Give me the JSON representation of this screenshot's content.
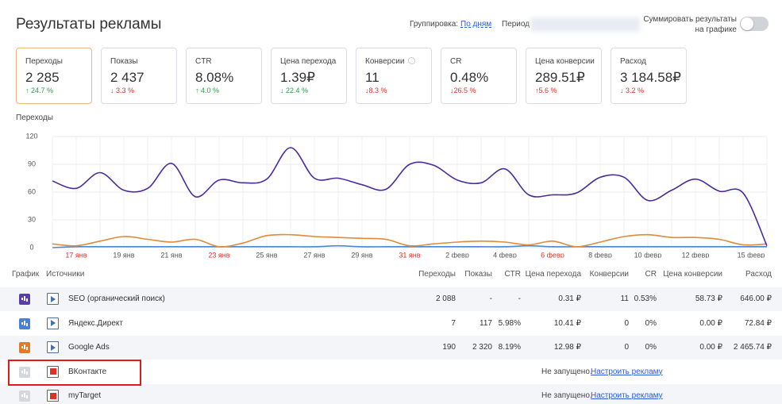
{
  "header": {
    "title": "Результаты рекламы",
    "grouping_label": "Группировка:",
    "grouping_value": "По дням",
    "period_label": "Период",
    "sum_label": [
      "Суммировать результаты",
      "на графике"
    ]
  },
  "cards": [
    {
      "label": "Переходы",
      "value": "2 285",
      "change": "↑ 24.7 %",
      "color": "#2e9d4a",
      "active": true
    },
    {
      "label": "Показы",
      "value": "2 437",
      "change": "↓ 3.3 %",
      "color": "#d9342b"
    },
    {
      "label": "CTR",
      "value": "8.08%",
      "change": "↑ 4.0 %",
      "color": "#2e9d4a"
    },
    {
      "label": "Цена перехода",
      "value": "1.39₽",
      "change": "↓ 22.4 %",
      "color": "#2e9d4a"
    },
    {
      "label": "Конверсии",
      "value": "11",
      "change": "↓8.3 %",
      "color": "#d9342b",
      "settings_icon": true
    },
    {
      "label": "CR",
      "value": "0.48%",
      "change": "↓26.5 %",
      "color": "#d9342b"
    },
    {
      "label": "Цена конверсии",
      "value": "289.51₽",
      "change": "↑5.6 %",
      "color": "#d9342b"
    },
    {
      "label": "Расход",
      "value": "3 184.58₽",
      "change": "↓ 3.2 %",
      "color": "#d9342b"
    }
  ],
  "chart_data": {
    "type": "line",
    "title": "Переходы",
    "categories": [
      null,
      "17 янв",
      null,
      "19 янв",
      null,
      "21 янв",
      null,
      "23 янв",
      null,
      "25 янв",
      null,
      "27 янв",
      null,
      "29 янв",
      null,
      "31 янв",
      null,
      "2 февр",
      null,
      "4 февр",
      null,
      "6 февр",
      null,
      "8 февр",
      null,
      "10 февр",
      null,
      "12 февр",
      null,
      null,
      "15 февр"
    ],
    "category_colors": [
      null,
      "#d9342b",
      null,
      "#555",
      null,
      "#555",
      null,
      "#d9342b",
      null,
      "#555",
      null,
      "#555",
      null,
      "#555",
      null,
      "#d9342b",
      null,
      "#555",
      null,
      "#555",
      null,
      "#d9342b",
      null,
      "#555",
      null,
      "#555",
      null,
      "#555",
      null,
      null,
      "#555"
    ],
    "ylim": [
      0,
      120
    ],
    "yticks": [
      0,
      30,
      60,
      90,
      120
    ],
    "grid": true,
    "series": [
      {
        "color": "#4b2a9e",
        "values": [
          72,
          64,
          81,
          62,
          64,
          91,
          55,
          73,
          70,
          74,
          108,
          75,
          75,
          68,
          63,
          90,
          89,
          73,
          70,
          85,
          57,
          57,
          59,
          76,
          76,
          51,
          62,
          74,
          61,
          59,
          2
        ]
      },
      {
        "color": "#e08a3c",
        "values": [
          4,
          2,
          7,
          12,
          9,
          6,
          9,
          1,
          5,
          13,
          14,
          12,
          11,
          10,
          9,
          2,
          4,
          6,
          7,
          6,
          3,
          7,
          1,
          6,
          12,
          14,
          11,
          11,
          9,
          3,
          4
        ]
      },
      {
        "color": "#4a8ad8",
        "values": [
          0,
          1,
          1,
          1,
          1,
          1,
          1,
          1,
          1,
          1,
          1,
          1,
          2,
          1,
          1,
          1,
          1,
          1,
          1,
          1,
          2,
          1,
          1,
          1,
          1,
          1,
          1,
          1,
          1,
          1,
          1
        ]
      }
    ]
  },
  "table": {
    "headers": [
      "График",
      "Источники",
      "Переходы",
      "Показы",
      "CTR",
      "Цена перехода",
      "Конверсии",
      "CR",
      "Цена конверсии",
      "Расход"
    ],
    "rows": [
      {
        "icon_color": "#5b3fa8",
        "source_icon": "play",
        "cells": [
          "SEO (органический поиск)",
          "2 088",
          "-",
          "-",
          "0.31 ₽",
          "11",
          "0.53%",
          "58.73 ₽",
          "646.00 ₽"
        ]
      },
      {
        "icon_color": "#4a7fd6",
        "source_icon": "play",
        "cells": [
          "Яндекс.Директ",
          "7",
          "117",
          "5.98%",
          "10.41 ₽",
          "0",
          "0%",
          "0.00 ₽",
          "72.84 ₽"
        ]
      },
      {
        "icon_color": "#e07b2a",
        "source_icon": "play",
        "cells": [
          "Google Ads",
          "190",
          "2 320",
          "8.19%",
          "12.98 ₽",
          "0",
          "0%",
          "0.00 ₽",
          "2 465.74 ₽"
        ]
      },
      {
        "icon_color": "#d4d7dc",
        "source_icon": "stop",
        "cells": [
          "ВКонтакте"
        ],
        "status": "Не запущено.",
        "link": "Настроить рекламу",
        "highlighted": true
      },
      {
        "icon_color": "#d4d7dc",
        "source_icon": "stop",
        "cells": [
          "myTarget"
        ],
        "status": "Не запущено.",
        "link": "Настроить рекламу"
      }
    ]
  }
}
